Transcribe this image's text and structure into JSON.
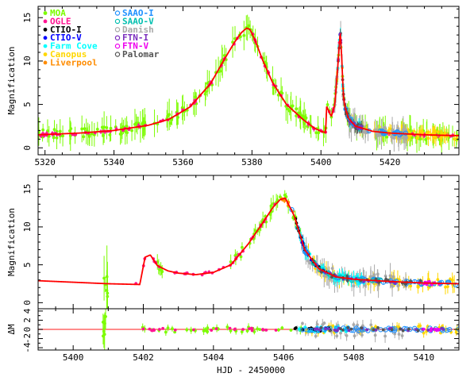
{
  "chart_data": [
    {
      "type": "scatter",
      "panel": "top",
      "ylabel": "Magnification",
      "xlim": [
        5318,
        5440
      ],
      "ylim": [
        -0.8,
        16.3
      ],
      "xticks": [
        5320,
        5340,
        5360,
        5380,
        5400,
        5420
      ],
      "yticks": [
        0,
        5,
        10,
        15
      ],
      "legend": {
        "placement": "top-left",
        "entries": [
          {
            "name": "MOA",
            "color": "#7CFC00"
          },
          {
            "name": "OGLE",
            "color": "#FF1493"
          },
          {
            "name": "CTIO-I",
            "color": "#000000"
          },
          {
            "name": "CTIO-V",
            "color": "#0000FF"
          },
          {
            "name": "Farm Cove",
            "color": "#00FFFF"
          },
          {
            "name": "Canopus",
            "color": "#FFD700"
          },
          {
            "name": "Liverpool",
            "color": "#FF8C00"
          },
          {
            "name": "SAAO-I",
            "color": "#1E90FF"
          },
          {
            "name": "SAAO-V",
            "color": "#00BFAF"
          },
          {
            "name": "Danish",
            "color": "#A9A9A9"
          },
          {
            "name": "FTN-I",
            "color": "#7B2FBE"
          },
          {
            "name": "FTN-V",
            "color": "#EE00EE"
          },
          {
            "name": "Palomar",
            "color": "#555555"
          }
        ]
      },
      "model_curve": {
        "color": "#FF0000",
        "x": [
          5318,
          5330,
          5340,
          5350,
          5356,
          5362,
          5368,
          5372,
          5375,
          5377,
          5378.5,
          5379.5,
          5381,
          5383,
          5386,
          5390,
          5395,
          5398,
          5400,
          5401.4,
          5401.6,
          5402.2,
          5403,
          5404,
          5405,
          5405.6,
          5406,
          5406.5,
          5407,
          5408,
          5410,
          5415,
          5420,
          5430,
          5440
        ],
        "y": [
          1.5,
          1.7,
          2.0,
          2.6,
          3.3,
          4.7,
          7.4,
          10.2,
          12.2,
          13.3,
          13.8,
          13.6,
          12.3,
          10.2,
          7.5,
          5.0,
          3.2,
          2.3,
          1.9,
          1.75,
          4.8,
          4.3,
          3.6,
          4.9,
          10.0,
          13.5,
          10.5,
          6.0,
          4.6,
          3.4,
          2.5,
          1.9,
          1.7,
          1.5,
          1.4
        ]
      }
    },
    {
      "type": "scatter",
      "panel": "middle",
      "ylabel": "Magnification",
      "xlim": [
        5399,
        5411
      ],
      "ylim": [
        -0.8,
        16.8
      ],
      "xticks": [
        5400,
        5402,
        5404,
        5406,
        5408,
        5410
      ],
      "yticks": [
        0,
        5,
        10,
        15
      ],
      "model_curve": {
        "color": "#FF0000",
        "x": [
          5399,
          5400,
          5401,
          5401.9,
          5402.05,
          5402.2,
          5402.4,
          5402.7,
          5403,
          5403.5,
          5404,
          5404.5,
          5405,
          5405.4,
          5405.7,
          5405.9,
          5406.05,
          5406.3,
          5406.6,
          5407,
          5407.5,
          5408,
          5409,
          5410,
          5411
        ],
        "y": [
          2.9,
          2.7,
          2.5,
          2.4,
          6.0,
          6.3,
          4.9,
          4.2,
          3.9,
          3.7,
          4.0,
          5.0,
          7.8,
          10.5,
          12.6,
          13.6,
          13.8,
          11.5,
          7.0,
          4.5,
          3.4,
          3.1,
          2.8,
          2.6,
          2.5
        ]
      }
    },
    {
      "type": "scatter",
      "panel": "residuals",
      "ylabel": "ΔM",
      "xlabel": "HJD - 2450000",
      "xlim": [
        5399,
        5411
      ],
      "ylim": [
        -4.5,
        4.5
      ],
      "xticks": [
        5400,
        5402,
        5404,
        5406,
        5408,
        5410
      ],
      "yticks": [
        -4,
        -2,
        0,
        2,
        4
      ],
      "zero_line_color": "#FF6666"
    }
  ]
}
